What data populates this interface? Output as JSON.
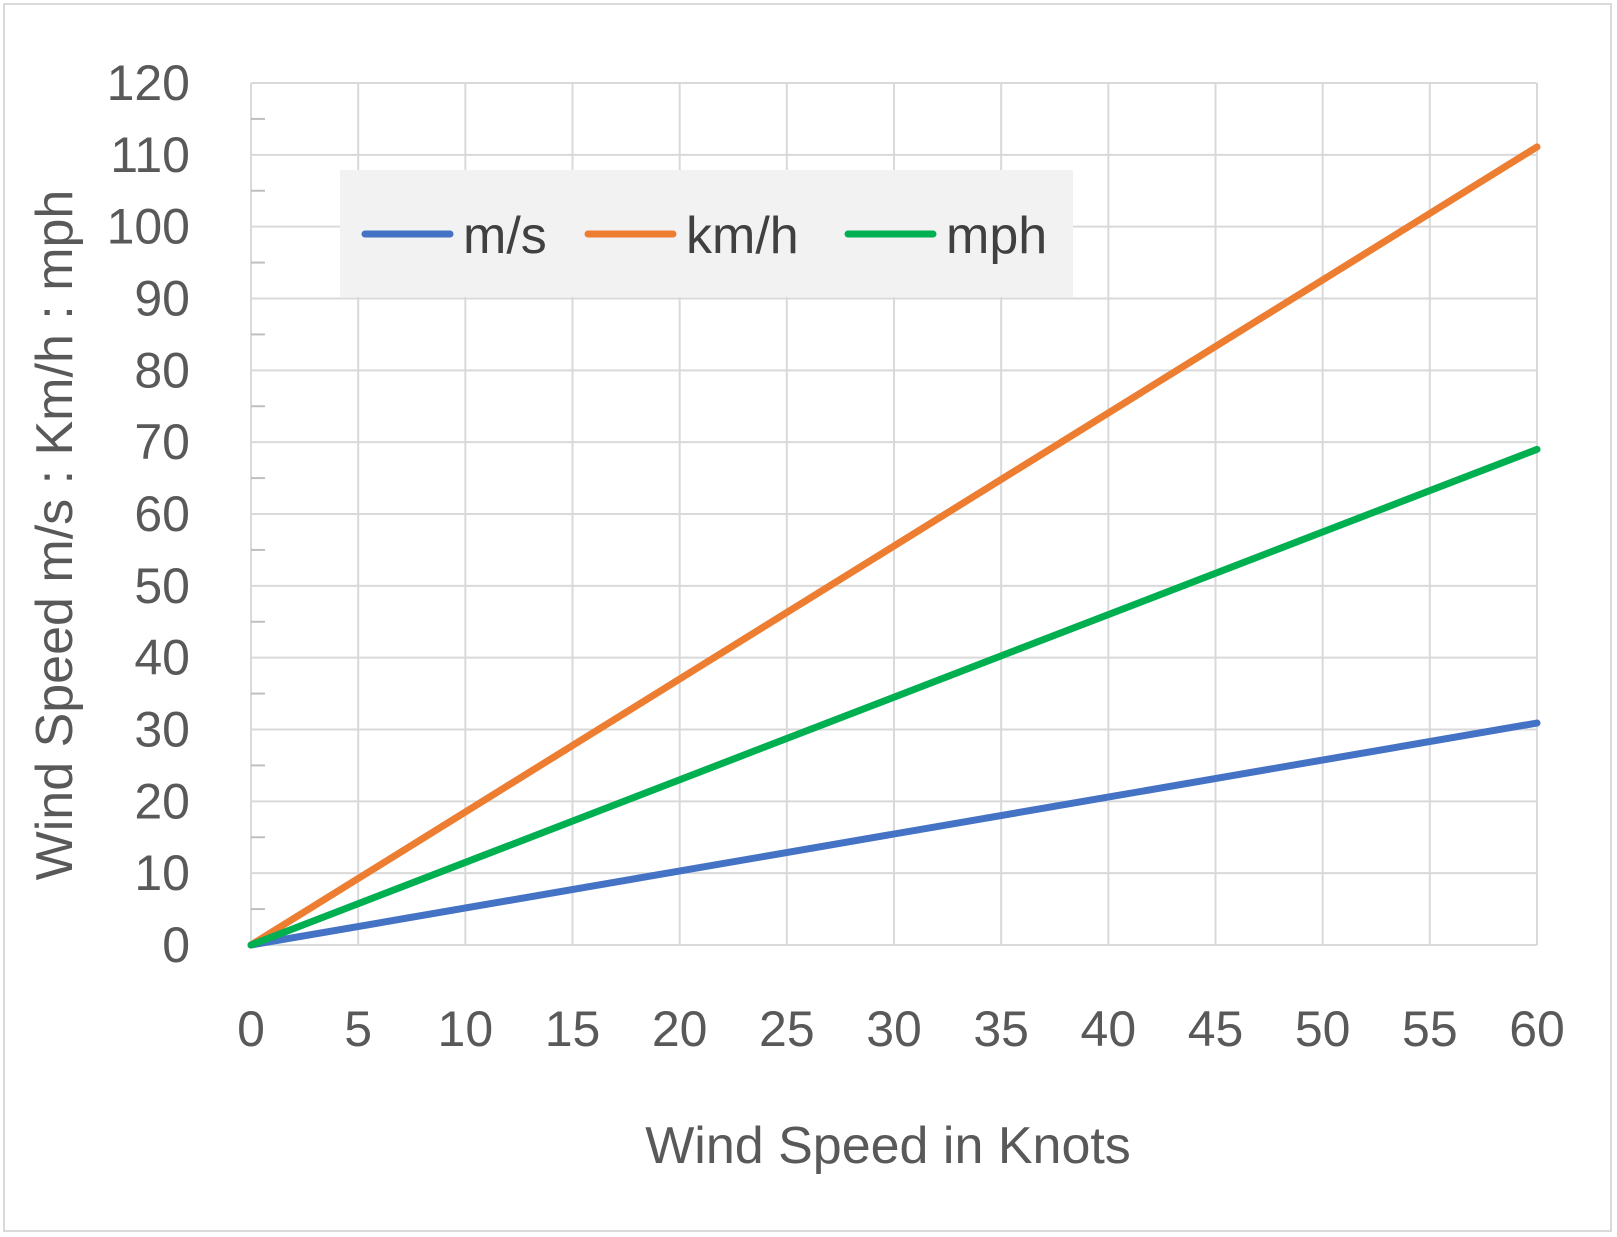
{
  "chart_data": {
    "type": "line",
    "title": "",
    "xlabel": "Wind Speed in Knots",
    "ylabel": "Wind Speed m/s : Km/h : mph",
    "x_ticks": [
      "0",
      "5",
      "10",
      "15",
      "20",
      "25",
      "30",
      "35",
      "40",
      "45",
      "50",
      "55",
      "60"
    ],
    "y_ticks": [
      "0",
      "10",
      "20",
      "30",
      "40",
      "50",
      "60",
      "70",
      "80",
      "90",
      "100",
      "110",
      "120"
    ],
    "xlim": [
      0,
      60
    ],
    "ylim": [
      0,
      120
    ],
    "grid": true,
    "legend_position": "top-left",
    "series": [
      {
        "name": "m/s",
        "color": "#4472C4",
        "x": [
          0,
          60
        ],
        "values": [
          0,
          30.9
        ]
      },
      {
        "name": "km/h",
        "color": "#ED7D31",
        "x": [
          0,
          60
        ],
        "values": [
          0,
          111.1
        ]
      },
      {
        "name": "mph",
        "color": "#00B050",
        "x": [
          0,
          60
        ],
        "values": [
          0,
          69
        ]
      }
    ]
  }
}
